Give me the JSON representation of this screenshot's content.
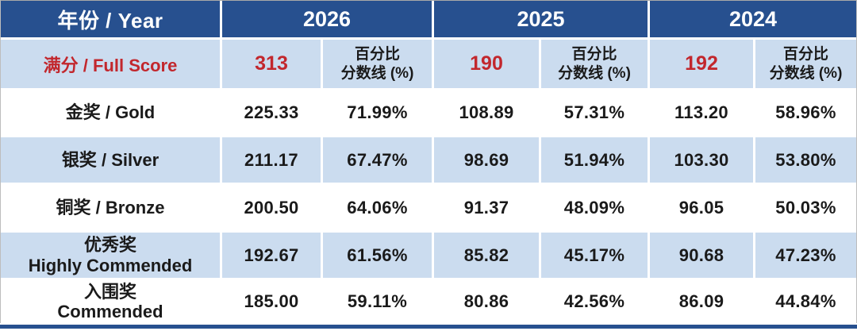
{
  "colors": {
    "header_blue": "#27508F",
    "row_light_blue": "#CBDCEF",
    "row_white": "#FFFFFF",
    "accent_red": "#C2272D",
    "text_black": "#1A1A1A"
  },
  "header": {
    "year_label": "年份 / Year",
    "years": [
      "2026",
      "2025",
      "2024"
    ]
  },
  "full_score": {
    "label": "满分 / Full Score",
    "scores": [
      "313",
      "190",
      "192"
    ],
    "pct_line1": "百分比",
    "pct_line2": "分数线 (%)"
  },
  "rows": [
    {
      "label_line1": "金奖 / Gold",
      "values": [
        "225.33",
        "71.99%",
        "108.89",
        "57.31%",
        "113.20",
        "58.96%"
      ]
    },
    {
      "label_line1": "银奖 / Silver",
      "values": [
        "211.17",
        "67.47%",
        "98.69",
        "51.94%",
        "103.30",
        "53.80%"
      ]
    },
    {
      "label_line1": "铜奖 / Bronze",
      "values": [
        "200.50",
        "64.06%",
        "91.37",
        "48.09%",
        "96.05",
        "50.03%"
      ]
    },
    {
      "label_line1": "优秀奖",
      "label_line2": "Highly Commended",
      "values": [
        "192.67",
        "61.56%",
        "85.82",
        "45.17%",
        "90.68",
        "47.23%"
      ]
    },
    {
      "label_line1": "入围奖",
      "label_line2": "Commended",
      "values": [
        "185.00",
        "59.11%",
        "80.86",
        "42.56%",
        "86.09",
        "44.84%"
      ]
    }
  ],
  "chart_data": {
    "type": "table",
    "columns": [
      "年份 / Year",
      "2026 分数线",
      "2026 百分比分数线 (%)",
      "2025 分数线",
      "2025 百分比分数线 (%)",
      "2024 分数线",
      "2024 百分比分数线 (%)"
    ],
    "full_score": {
      "2026": 313,
      "2025": 190,
      "2024": 192
    },
    "rows": [
      [
        "金奖 / Gold",
        225.33,
        "71.99%",
        108.89,
        "57.31%",
        113.2,
        "58.96%"
      ],
      [
        "银奖 / Silver",
        211.17,
        "67.47%",
        98.69,
        "51.94%",
        103.3,
        "53.80%"
      ],
      [
        "铜奖 / Bronze",
        200.5,
        "64.06%",
        91.37,
        "48.09%",
        96.05,
        "50.03%"
      ],
      [
        "优秀奖 Highly Commended",
        192.67,
        "61.56%",
        85.82,
        "45.17%",
        90.68,
        "47.23%"
      ],
      [
        "入围奖 Commended",
        185.0,
        "59.11%",
        80.86,
        "42.56%",
        86.09,
        "44.84%"
      ]
    ]
  }
}
